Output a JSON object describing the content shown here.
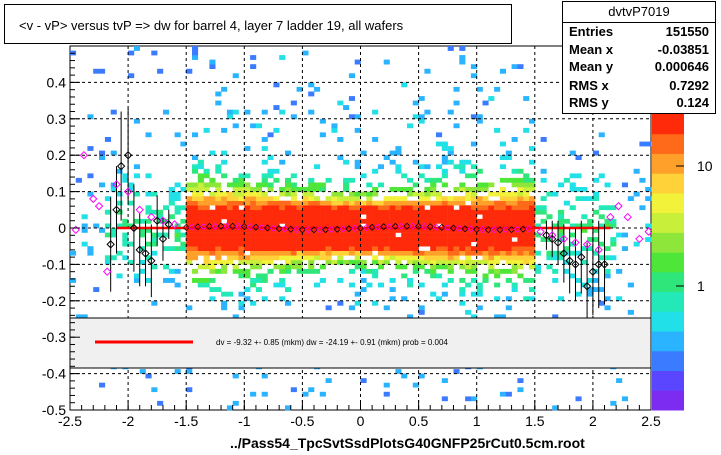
{
  "title": "<v - vP>       versus  tvP =>  dw for barrel 4, layer 7 ladder 19, all wafers",
  "stats": {
    "name": "dvtvP7019",
    "rows": [
      {
        "label": "Entries",
        "value": "151550"
      },
      {
        "label": "Mean x",
        "value": "-0.03851"
      },
      {
        "label": "Mean y",
        "value": "0.000646"
      },
      {
        "label": "RMS x",
        "value": "0.7292"
      },
      {
        "label": "RMS y",
        "value": "0.124"
      }
    ]
  },
  "xtitle": "../Pass54_TpcSvtSsdPlotsG40GNFP25rCut0.5cm.root",
  "legend": {
    "text": "dv =   -9.32 +-  0.85 (mkm) dw =  -24.19 +-  0.91 (mkm) prob = 0.004",
    "line_color": "#ff0000"
  },
  "chart_data": {
    "type": "heatmap",
    "xlim": [
      -2.5,
      2.5
    ],
    "ylim": [
      -0.5,
      0.5
    ],
    "x_ticks": [
      "-2.5",
      "-2",
      "-1.5",
      "-1",
      "-0.5",
      "0",
      "0.5",
      "1",
      "1.5",
      "2",
      "2.5"
    ],
    "y_ticks": [
      "-0.5",
      "-0.4",
      "-0.3",
      "-0.2",
      "-0.1",
      "0",
      "0.1",
      "0.2",
      "0.3",
      "0.4"
    ],
    "z_scale": "log",
    "z_ticks": [
      "1",
      "10"
    ],
    "palette": [
      "#7b2cf0",
      "#5a46ff",
      "#3b7bff",
      "#2ab4ff",
      "#21e0e8",
      "#23e8b8",
      "#2ee67a",
      "#4fe63a",
      "#8fe63a",
      "#c8ef3a",
      "#f2f23a",
      "#ffd23a",
      "#ffa02a",
      "#ff6a1a",
      "#ff2a0a"
    ],
    "fit": {
      "color": "#ff0000",
      "x_range": [
        -2.1,
        2.15
      ],
      "y": 0.0
    },
    "profile_black": [
      {
        "x": -2.15,
        "y": -0.045,
        "err": 0.13
      },
      {
        "x": -2.1,
        "y": 0.05,
        "err": 0.12
      },
      {
        "x": -2.06,
        "y": 0.17,
        "err": 0.15
      },
      {
        "x": -2.0,
        "y": 0.2,
        "err": 0.13
      },
      {
        "x": -1.95,
        "y": 0.0,
        "err": 0.12
      },
      {
        "x": -1.9,
        "y": -0.06,
        "err": 0.1
      },
      {
        "x": -1.85,
        "y": -0.07,
        "err": 0.09
      },
      {
        "x": -1.8,
        "y": -0.09,
        "err": 0.1
      },
      {
        "x": -1.75,
        "y": 0.02,
        "err": 0.07
      },
      {
        "x": -1.7,
        "y": -0.03,
        "err": 0.06
      },
      {
        "x": -1.65,
        "y": 0.01,
        "err": 0.04
      },
      {
        "x": 1.6,
        "y": -0.02,
        "err": 0.04
      },
      {
        "x": 1.65,
        "y": -0.03,
        "err": 0.05
      },
      {
        "x": 1.7,
        "y": -0.04,
        "err": 0.06
      },
      {
        "x": 1.75,
        "y": -0.07,
        "err": 0.08
      },
      {
        "x": 1.8,
        "y": -0.09,
        "err": 0.09
      },
      {
        "x": 1.85,
        "y": -0.1,
        "err": 0.1
      },
      {
        "x": 1.9,
        "y": -0.08,
        "err": 0.1
      },
      {
        "x": 1.95,
        "y": -0.16,
        "err": 0.12
      },
      {
        "x": 2.0,
        "y": -0.12,
        "err": 0.12
      },
      {
        "x": 2.05,
        "y": -0.1,
        "err": 0.12
      },
      {
        "x": 2.1,
        "y": -0.1,
        "err": 0.11
      }
    ],
    "profile_magenta": [
      {
        "x": -2.45,
        "y": -0.005
      },
      {
        "x": -2.38,
        "y": 0.2
      },
      {
        "x": -2.3,
        "y": 0.08
      },
      {
        "x": -2.25,
        "y": 0.06
      },
      {
        "x": -2.18,
        "y": -0.12
      },
      {
        "x": -2.1,
        "y": 0.12
      },
      {
        "x": -2.0,
        "y": 0.1
      },
      {
        "x": -1.9,
        "y": 0.05
      },
      {
        "x": -1.8,
        "y": 0.03
      },
      {
        "x": -1.7,
        "y": 0.02
      },
      {
        "x": -1.6,
        "y": 0.01
      },
      {
        "x": 1.55,
        "y": -0.01
      },
      {
        "x": 1.65,
        "y": -0.02
      },
      {
        "x": 1.75,
        "y": -0.03
      },
      {
        "x": 1.85,
        "y": -0.04
      },
      {
        "x": 1.95,
        "y": -0.045
      },
      {
        "x": 2.05,
        "y": -0.06
      },
      {
        "x": 2.15,
        "y": 0.03
      },
      {
        "x": 2.22,
        "y": 0.06
      },
      {
        "x": 2.3,
        "y": 0.03
      },
      {
        "x": 2.4,
        "y": -0.03
      },
      {
        "x": 2.48,
        "y": -0.01
      }
    ]
  }
}
